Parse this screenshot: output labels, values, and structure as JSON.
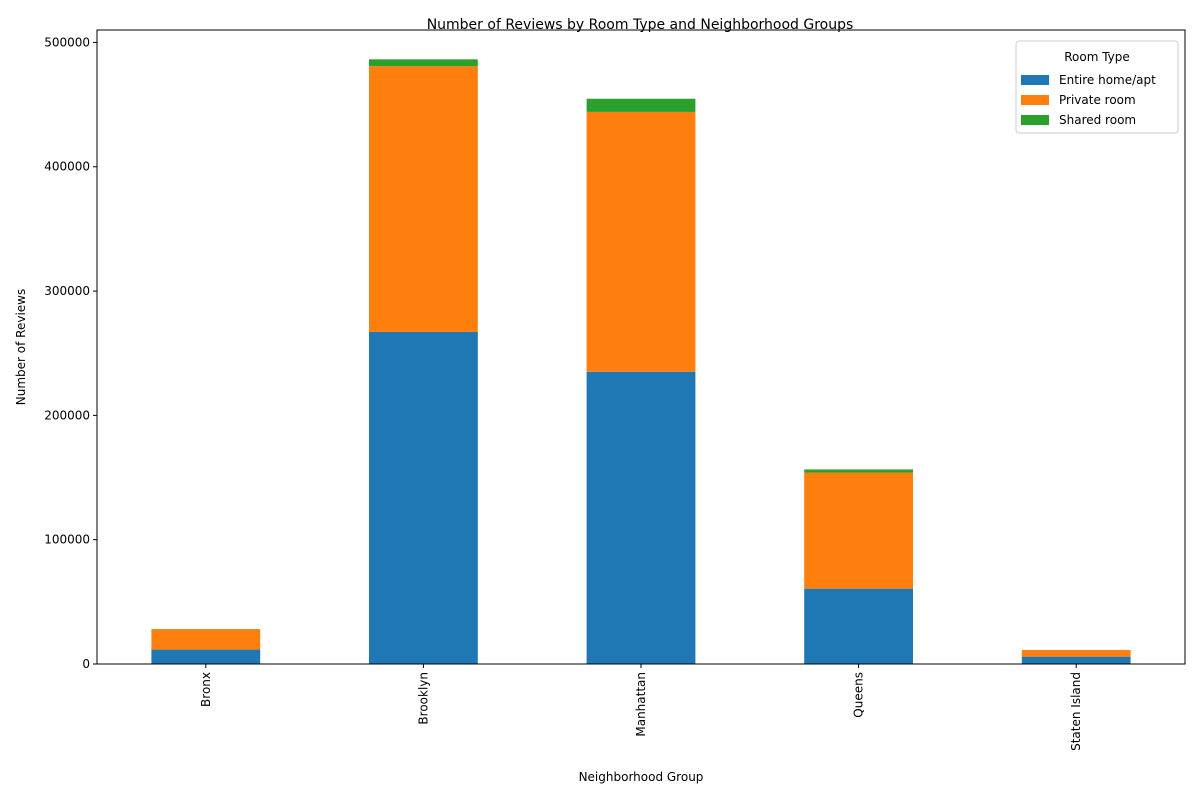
{
  "chart_data": {
    "type": "bar",
    "stacked": true,
    "title": "Number of Reviews by Room Type and Neighborhood Groups",
    "xlabel": "Neighborhood Group",
    "ylabel": "Number of Reviews",
    "categories": [
      "Bronx",
      "Brooklyn",
      "Manhattan",
      "Queens",
      "Staten Island"
    ],
    "series": [
      {
        "name": "Entire home/apt",
        "color": "#1f77b4",
        "values": [
          11600,
          267100,
          235100,
          60600,
          5900
        ]
      },
      {
        "name": "Private room",
        "color": "#ff7f0e",
        "values": [
          16300,
          213800,
          209000,
          93400,
          5300
        ]
      },
      {
        "name": "Shared room",
        "color": "#2ca02c",
        "values": [
          200,
          5500,
          10600,
          2500,
          100
        ]
      }
    ],
    "ylim": [
      0,
      510000
    ],
    "yticks": [
      0,
      100000,
      200000,
      300000,
      400000,
      500000
    ],
    "grid": false,
    "legend": {
      "title": "Room Type",
      "position": "top-right"
    }
  }
}
